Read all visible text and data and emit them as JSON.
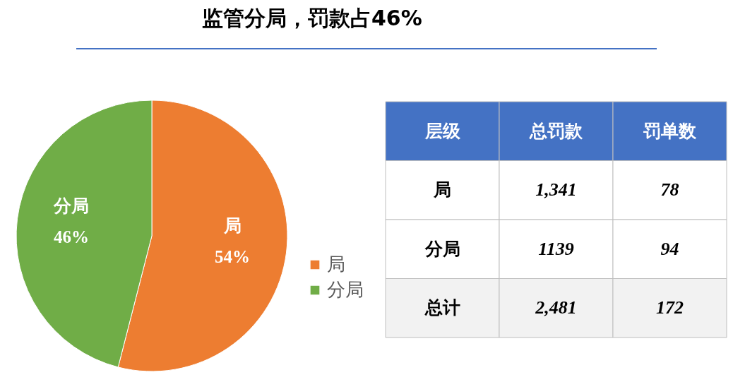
{
  "chart_data": [
    {
      "type": "pie",
      "title": "监管分局，罚款占46%",
      "categories": [
        "局",
        "分局"
      ],
      "values": [
        54,
        46
      ],
      "colors": [
        "#ed7d31",
        "#70ad47"
      ],
      "value_labels": [
        "54%",
        "46%"
      ],
      "legend": "right"
    },
    {
      "type": "other",
      "xlabel": "层级",
      "categories": [
        "局",
        "分局",
        "总计"
      ],
      "data_labels": true,
      "series": [
        {
          "name": "总罚款",
          "values": [
            1341,
            1139,
            2481
          ],
          "value_labels": [
            "1,341",
            "1139",
            "2,481"
          ],
          "colors": [
            "#ffffff",
            "#ffffff",
            "#f2f2f2"
          ]
        },
        {
          "name": "罚单数",
          "values": [
            78,
            94,
            172
          ],
          "colors": [
            "#ffffff",
            "#ffffff",
            "#f2f2f2"
          ]
        }
      ]
    }
  ]
}
